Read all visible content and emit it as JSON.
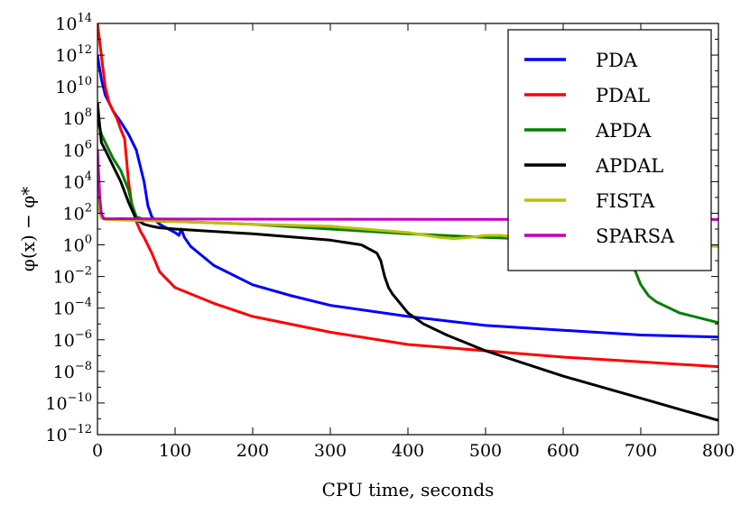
{
  "chart_data": {
    "type": "line",
    "xlabel": "CPU time, seconds",
    "ylabel": "φ(x) − φ*",
    "xlim": [
      0,
      800
    ],
    "ylim": [
      1e-12,
      100000000000000.0
    ],
    "yscale": "log",
    "grid": false,
    "legend": "top-right",
    "x_ticks": [
      0,
      100,
      200,
      300,
      400,
      500,
      600,
      700,
      800
    ],
    "y_ticks": [
      {
        "base": "10",
        "exp": "-12",
        "value": 1e-12
      },
      {
        "base": "10",
        "exp": "-10",
        "value": 1e-10
      },
      {
        "base": "10",
        "exp": "-8",
        "value": 1e-08
      },
      {
        "base": "10",
        "exp": "-6",
        "value": 1e-06
      },
      {
        "base": "10",
        "exp": "-4",
        "value": 0.0001
      },
      {
        "base": "10",
        "exp": "-2",
        "value": 0.01
      },
      {
        "base": "10",
        "exp": "0",
        "value": 1
      },
      {
        "base": "10",
        "exp": "2",
        "value": 100.0
      },
      {
        "base": "10",
        "exp": "4",
        "value": 10000.0
      },
      {
        "base": "10",
        "exp": "6",
        "value": 1000000.0
      },
      {
        "base": "10",
        "exp": "8",
        "value": 100000000.0
      },
      {
        "base": "10",
        "exp": "10",
        "value": 10000000000.0
      },
      {
        "base": "10",
        "exp": "12",
        "value": 1000000000000.0
      },
      {
        "base": "10",
        "exp": "14",
        "value": 100000000000000.0
      }
    ],
    "series": [
      {
        "name": "PDA",
        "color": "#0000ff",
        "x": [
          0,
          5,
          10,
          20,
          30,
          40,
          50,
          60,
          65,
          70,
          80,
          100,
          105,
          108,
          112,
          120,
          150,
          200,
          250,
          300,
          400,
          500,
          600,
          700,
          800
        ],
        "y": [
          1000000000000.0,
          30000000000.0,
          3000000000.0,
          300000000.0,
          60000000.0,
          10000000.0,
          1000000.0,
          10000.0,
          300.0,
          60,
          20,
          6,
          4,
          10,
          3,
          0.8,
          0.05,
          0.003,
          0.0006,
          0.00015,
          3e-05,
          8e-06,
          4e-06,
          2e-06,
          1.5e-06
        ]
      },
      {
        "name": "PDAL",
        "color": "#ff0000",
        "x": [
          0,
          5,
          10,
          15,
          20,
          25,
          30,
          35,
          40,
          45,
          50,
          55,
          60,
          70,
          80,
          100,
          150,
          200,
          300,
          400,
          500,
          600,
          700,
          800
        ],
        "y": [
          100000000000000.0,
          1000000000000.0,
          10000000000.0,
          1000000000.0,
          300000000.0,
          100000000.0,
          20000000.0,
          5000000.0,
          10000.0,
          200,
          30,
          8,
          3,
          0.3,
          0.02,
          0.002,
          0.0002,
          3e-05,
          3e-06,
          5e-07,
          2e-07,
          8e-08,
          4e-08,
          2e-08
        ]
      },
      {
        "name": "APDA",
        "color": "#008000",
        "x": [
          0,
          5,
          10,
          20,
          30,
          40,
          45,
          50,
          60,
          80,
          100,
          200,
          300,
          400,
          500,
          600,
          650,
          680,
          690,
          700,
          710,
          720,
          750,
          800
        ],
        "y": [
          100000000.0,
          10000000.0,
          3000000.0,
          300000.0,
          50000.0,
          3000.0,
          300,
          60,
          40,
          30,
          30,
          20,
          10,
          5,
          3,
          2,
          1.5,
          0.5,
          0.05,
          0.003,
          0.0006,
          0.00025,
          5e-05,
          1.2e-05
        ]
      },
      {
        "name": "APDAL",
        "color": "#000000",
        "x": [
          0,
          5,
          10,
          20,
          30,
          40,
          50,
          60,
          70,
          80,
          100,
          200,
          300,
          340,
          360,
          365,
          370,
          375,
          380,
          390,
          400,
          420,
          450,
          500,
          600,
          700,
          800
        ],
        "y": [
          1000000000.0,
          3000000.0,
          1000000.0,
          100000.0,
          10000.0,
          500,
          40,
          20,
          15,
          12,
          10,
          5,
          2,
          1,
          0.3,
          0.1,
          0.01,
          0.002,
          0.0008,
          0.0002,
          5e-05,
          1e-05,
          2e-06,
          2e-07,
          5e-09,
          2e-10,
          8e-12
        ]
      },
      {
        "name": "FISTA",
        "color": "#bfbf00",
        "x": [
          0,
          2,
          5,
          10,
          100,
          200,
          300,
          400,
          440,
          460,
          480,
          500,
          520,
          540,
          560,
          600,
          650,
          700,
          750,
          800
        ],
        "y": [
          1000000.0,
          200,
          50,
          40,
          30,
          20,
          15,
          6,
          3,
          2.5,
          3,
          4,
          4,
          3,
          2.5,
          2,
          1.5,
          1.2,
          1,
          0.8
        ]
      },
      {
        "name": "SPARSA",
        "color": "#bf00bf",
        "x": [
          0,
          3,
          5,
          8,
          100,
          300,
          500,
          700,
          800
        ],
        "y": [
          1000000.0,
          1000.0,
          100,
          45,
          43,
          42,
          41,
          40,
          40
        ]
      }
    ]
  }
}
